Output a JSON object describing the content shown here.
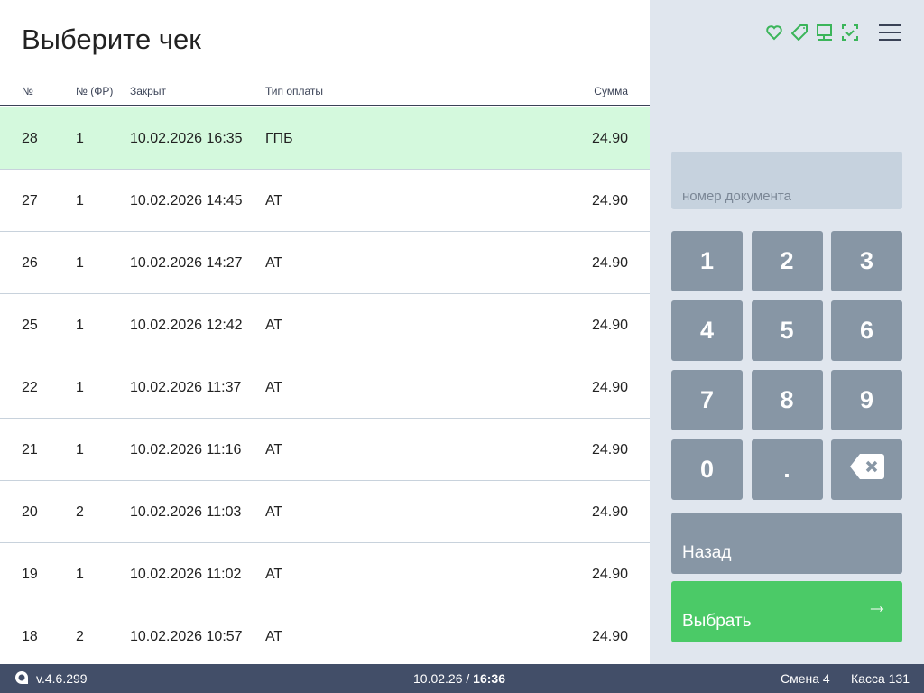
{
  "title": "Выберите чек",
  "columns": [
    "№",
    "№ (ФР)",
    "Закрыт",
    "Тип оплаты",
    "Сумма"
  ],
  "rows": [
    [
      "28",
      "1",
      "10.02.2026 16:35",
      "ГПБ",
      "24.90"
    ],
    [
      "27",
      "1",
      "10.02.2026 14:45",
      "АТ",
      "24.90"
    ],
    [
      "26",
      "1",
      "10.02.2026 14:27",
      "АТ",
      "24.90"
    ],
    [
      "25",
      "1",
      "10.02.2026 12:42",
      "АТ",
      "24.90"
    ],
    [
      "22",
      "1",
      "10.02.2026 11:37",
      "АТ",
      "24.90"
    ],
    [
      "21",
      "1",
      "10.02.2026 11:16",
      "АТ",
      "24.90"
    ],
    [
      "20",
      "2",
      "10.02.2026 11:03",
      "АТ",
      "24.90"
    ],
    [
      "19",
      "1",
      "10.02.2026 11:02",
      "АТ",
      "24.90"
    ],
    [
      "18",
      "2",
      "10.02.2026 10:57",
      "АТ",
      "24.90"
    ]
  ],
  "selected_row": 0,
  "top_icons": [
    "heart-icon",
    "tag-icon",
    "monitor-icon",
    "scan-check-icon",
    "menu-icon"
  ],
  "document_placeholder": "номер документа",
  "keypad": [
    "1",
    "2",
    "3",
    "4",
    "5",
    "6",
    "7",
    "8",
    "9",
    "0",
    ".",
    "backspace"
  ],
  "back_label": "Назад",
  "choose_label": "Выбрать",
  "footer": {
    "version": "v.4.6.299",
    "date": "10.02.26",
    "separator": "/",
    "time": "16:36",
    "shift": "Смена 4",
    "register": "Касса 131"
  },
  "colors": {
    "accent": "#4bca67",
    "selected_row": "#d4f9dd",
    "footer": "#424e68",
    "key": "#8796a5"
  }
}
